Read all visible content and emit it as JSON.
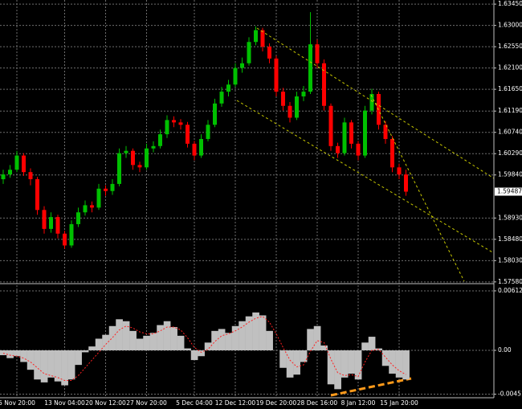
{
  "chart_data": [
    {
      "type": "candlestick",
      "categories": [
        null,
        null,
        "5 Nov 20:00",
        null,
        null,
        null,
        null,
        null,
        null,
        "13 Nov 04:00",
        null,
        null,
        null,
        null,
        null,
        "20 Nov 12:00",
        null,
        null,
        null,
        null,
        null,
        "27 Nov 20:00",
        null,
        null,
        null,
        null,
        null,
        null,
        "5 Dec 04:00",
        null,
        null,
        null,
        null,
        null,
        "12 Dec 12:00",
        null,
        null,
        null,
        null,
        null,
        "19 Dec 20:00",
        null,
        null,
        null,
        null,
        null,
        "28 Dec 16:00",
        null,
        null,
        null,
        null,
        null,
        "8 Jan 12:00",
        null,
        null,
        null,
        null,
        null,
        "15 Jan 20:00",
        null
      ],
      "open": [
        1.5975,
        1.5985,
        1.5995,
        1.6025,
        1.599,
        1.5975,
        1.591,
        1.587,
        1.5895,
        1.586,
        1.5835,
        1.588,
        1.5905,
        1.592,
        1.5915,
        1.5955,
        1.595,
        1.5965,
        1.603,
        1.6035,
        1.6005,
        1.6,
        1.604,
        1.6045,
        1.607,
        1.61,
        1.6095,
        1.609,
        1.605,
        1.6025,
        1.606,
        1.609,
        1.6135,
        1.616,
        1.6175,
        1.621,
        1.622,
        1.6265,
        1.629,
        1.6255,
        1.623,
        1.616,
        1.613,
        1.6105,
        1.615,
        1.616,
        1.626,
        1.622,
        1.613,
        1.6045,
        1.603,
        1.6095,
        1.605,
        1.6025,
        1.612,
        1.6155,
        1.609,
        1.606,
        1.6,
        1.5985
      ],
      "high": [
        1.5995,
        1.6005,
        1.6035,
        1.603,
        1.5998,
        1.598,
        1.5918,
        1.5905,
        1.59,
        1.5866,
        1.5888,
        1.5915,
        1.593,
        1.5928,
        1.5965,
        1.5962,
        1.5975,
        1.604,
        1.6045,
        1.604,
        1.6012,
        1.605,
        1.6055,
        1.608,
        1.611,
        1.6108,
        1.6102,
        1.6096,
        1.6056,
        1.607,
        1.61,
        1.6145,
        1.617,
        1.6185,
        1.622,
        1.6232,
        1.6275,
        1.6298,
        1.6295,
        1.6262,
        1.6236,
        1.6168,
        1.6138,
        1.616,
        1.6172,
        1.6328,
        1.627,
        1.6228,
        1.6135,
        1.6052,
        1.6105,
        1.61,
        1.6056,
        1.613,
        1.6166,
        1.616,
        1.6098,
        1.6066,
        1.6008,
        1.5995
      ],
      "low": [
        1.5965,
        1.5978,
        1.599,
        1.5982,
        1.5962,
        1.59,
        1.586,
        1.5862,
        1.585,
        1.5828,
        1.583,
        1.5874,
        1.5898,
        1.5905,
        1.591,
        1.594,
        1.5942,
        1.596,
        1.602,
        1.5995,
        1.599,
        1.5995,
        1.6032,
        1.604,
        1.6062,
        1.6085,
        1.608,
        1.6042,
        1.6015,
        1.602,
        1.6055,
        1.6085,
        1.6128,
        1.615,
        1.617,
        1.62,
        1.6215,
        1.6258,
        1.6245,
        1.622,
        1.615,
        1.612,
        1.6095,
        1.61,
        1.614,
        1.6155,
        1.621,
        1.612,
        1.6035,
        1.602,
        1.6025,
        1.604,
        1.6015,
        1.602,
        1.6112,
        1.608,
        1.605,
        1.599,
        1.5975,
        1.594
      ],
      "close": [
        1.5985,
        1.5995,
        1.6025,
        1.599,
        1.5975,
        1.591,
        1.587,
        1.5895,
        1.586,
        1.5835,
        1.588,
        1.5905,
        1.592,
        1.5915,
        1.5955,
        1.595,
        1.5965,
        1.603,
        1.6035,
        1.6005,
        1.6,
        1.604,
        1.6045,
        1.607,
        1.61,
        1.6095,
        1.609,
        1.605,
        1.6025,
        1.606,
        1.609,
        1.6135,
        1.616,
        1.6175,
        1.621,
        1.622,
        1.6265,
        1.629,
        1.6255,
        1.623,
        1.616,
        1.613,
        1.6105,
        1.615,
        1.616,
        1.626,
        1.622,
        1.613,
        1.6045,
        1.603,
        1.6095,
        1.605,
        1.6025,
        1.612,
        1.6155,
        1.609,
        1.606,
        1.6,
        1.5985,
        1.59487
      ],
      "up_color": "#00c000",
      "down_color": "#ff0000",
      "ylim": [
        1.5756,
        1.6352
      ],
      "yticks": [
        {
          "value": 1.6345,
          "label": "1.63450"
        },
        {
          "value": 1.63,
          "label": "1.63000"
        },
        {
          "value": 1.6255,
          "label": "1.62550"
        },
        {
          "value": 1.621,
          "label": "1.62100"
        },
        {
          "value": 1.6165,
          "label": "1.61650"
        },
        {
          "value": 1.6119,
          "label": "1.61190"
        },
        {
          "value": 1.6074,
          "label": "1.60740"
        },
        {
          "value": 1.6029,
          "label": "1.60290"
        },
        {
          "value": 1.5984,
          "label": "1.59840"
        },
        {
          "value": 1.5893,
          "label": "1.58930"
        },
        {
          "value": 1.5848,
          "label": "1.58480"
        },
        {
          "value": 1.5803,
          "label": "1.58030"
        },
        {
          "value": 1.5758,
          "label": "1.57580"
        }
      ],
      "grid": true
    },
    {
      "type": "oscillator",
      "series": [
        {
          "kind": "bar",
          "color": "#c0c0c0",
          "values": [
            -0.0005,
            -0.0008,
            -0.0006,
            -0.0012,
            -0.002,
            -0.003,
            -0.0033,
            -0.0028,
            -0.0032,
            -0.0036,
            -0.003,
            -0.0015,
            -0.0002,
            0.0004,
            0.0012,
            0.0016,
            0.0025,
            0.0032,
            0.003,
            0.002,
            0.0012,
            0.0015,
            0.0018,
            0.0026,
            0.003,
            0.0024,
            0.0015,
            0.0002,
            -0.001,
            -0.0006,
            0.0008,
            0.002,
            0.0022,
            0.0018,
            0.0025,
            0.003,
            0.0035,
            0.0039,
            0.0036,
            0.002,
            0,
            -0.0018,
            -0.0028,
            -0.0025,
            -0.0012,
            0.0022,
            0.0025,
            0.0005,
            -0.0035,
            -0.004,
            -0.0028,
            -0.0024,
            -0.003,
            0.0008,
            0.0014,
            0.0002,
            -0.0016,
            -0.0024,
            -0.0028,
            -0.003
          ]
        },
        {
          "kind": "line",
          "color": "#ff2020",
          "values": [
            -0.0003,
            -0.0005,
            -0.0006,
            -0.0008,
            -0.0012,
            -0.0018,
            -0.0024,
            -0.0026,
            -0.0028,
            -0.0031,
            -0.0031,
            -0.0026,
            -0.0018,
            -0.001,
            -0.0002,
            0.0006,
            0.0013,
            0.0021,
            0.0025,
            0.0023,
            0.0019,
            0.0017,
            0.0017,
            0.002,
            0.0024,
            0.0024,
            0.0021,
            0.0013,
            0.0003,
            -0.0002,
            0.0001,
            0.0009,
            0.0015,
            0.0017,
            0.002,
            0.0024,
            0.0029,
            0.0033,
            0.0035,
            0.0029,
            0.0017,
            0.0003,
            -0.001,
            -0.0017,
            -0.0015,
            -0.0001,
            0.001,
            0.0008,
            -0.0009,
            -0.0023,
            -0.0026,
            -0.0025,
            -0.0027,
            -0.0012,
            0,
            0.0001,
            -0.0007,
            -0.0015,
            -0.0021,
            -0.0025
          ]
        }
      ],
      "ylim": [
        -0.00488,
        0.0067
      ],
      "yticks": [
        {
          "value": 0.006124,
          "label": "0.006124"
        },
        {
          "value": 0,
          "label": "0.00"
        },
        {
          "value": -0.00451,
          "label": "-0.00451"
        }
      ],
      "grid": true
    }
  ]
}
